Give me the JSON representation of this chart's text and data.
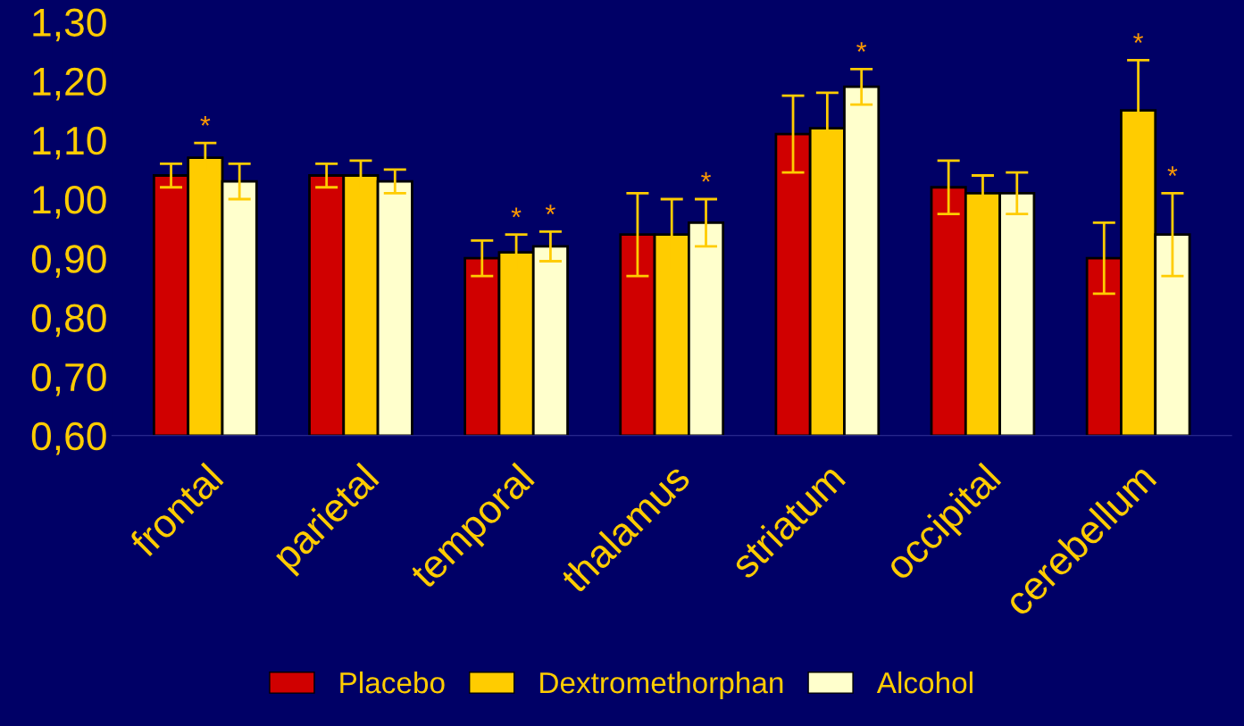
{
  "chart_data": {
    "type": "bar",
    "categories": [
      "frontal",
      "parietal",
      "temporal",
      "thalamus",
      "striatum",
      "occipital",
      "cerebellum"
    ],
    "series": [
      {
        "name": "Placebo",
        "color": "#d00000",
        "values": [
          1.04,
          1.04,
          0.9,
          0.94,
          1.11,
          1.02,
          0.9
        ],
        "errors": [
          0.02,
          0.02,
          0.03,
          0.07,
          0.065,
          0.045,
          0.06
        ]
      },
      {
        "name": "Dextromethorphan",
        "color": "#ffcc00",
        "values": [
          1.07,
          1.04,
          0.91,
          0.94,
          1.12,
          1.01,
          1.15
        ],
        "errors": [
          0.025,
          0.025,
          0.03,
          0.06,
          0.06,
          0.03,
          0.085
        ],
        "value_labels": [
          "*",
          null,
          "*",
          null,
          null,
          null,
          "*"
        ]
      },
      {
        "name": "Alcohol",
        "color": "#ffffcc",
        "values": [
          1.03,
          1.03,
          0.92,
          0.96,
          1.19,
          1.01,
          0.94
        ],
        "errors": [
          0.03,
          0.02,
          0.025,
          0.04,
          0.03,
          0.035,
          0.07
        ],
        "value_labels": [
          null,
          null,
          "*",
          "*",
          "*",
          null,
          "*"
        ]
      }
    ],
    "ylim": [
      0.6,
      1.3
    ],
    "yticks": [
      {
        "value": 0.6,
        "label": "0,60"
      },
      {
        "value": 0.7,
        "label": "0,70"
      },
      {
        "value": 0.8,
        "label": "0,80"
      },
      {
        "value": 0.9,
        "label": "0,90"
      },
      {
        "value": 1.0,
        "label": "1,00"
      },
      {
        "value": 1.1,
        "label": "1,10"
      },
      {
        "value": 1.2,
        "label": "1,20"
      },
      {
        "value": 1.3,
        "label": "1,30"
      }
    ],
    "grid": false,
    "legend": "bottom"
  }
}
